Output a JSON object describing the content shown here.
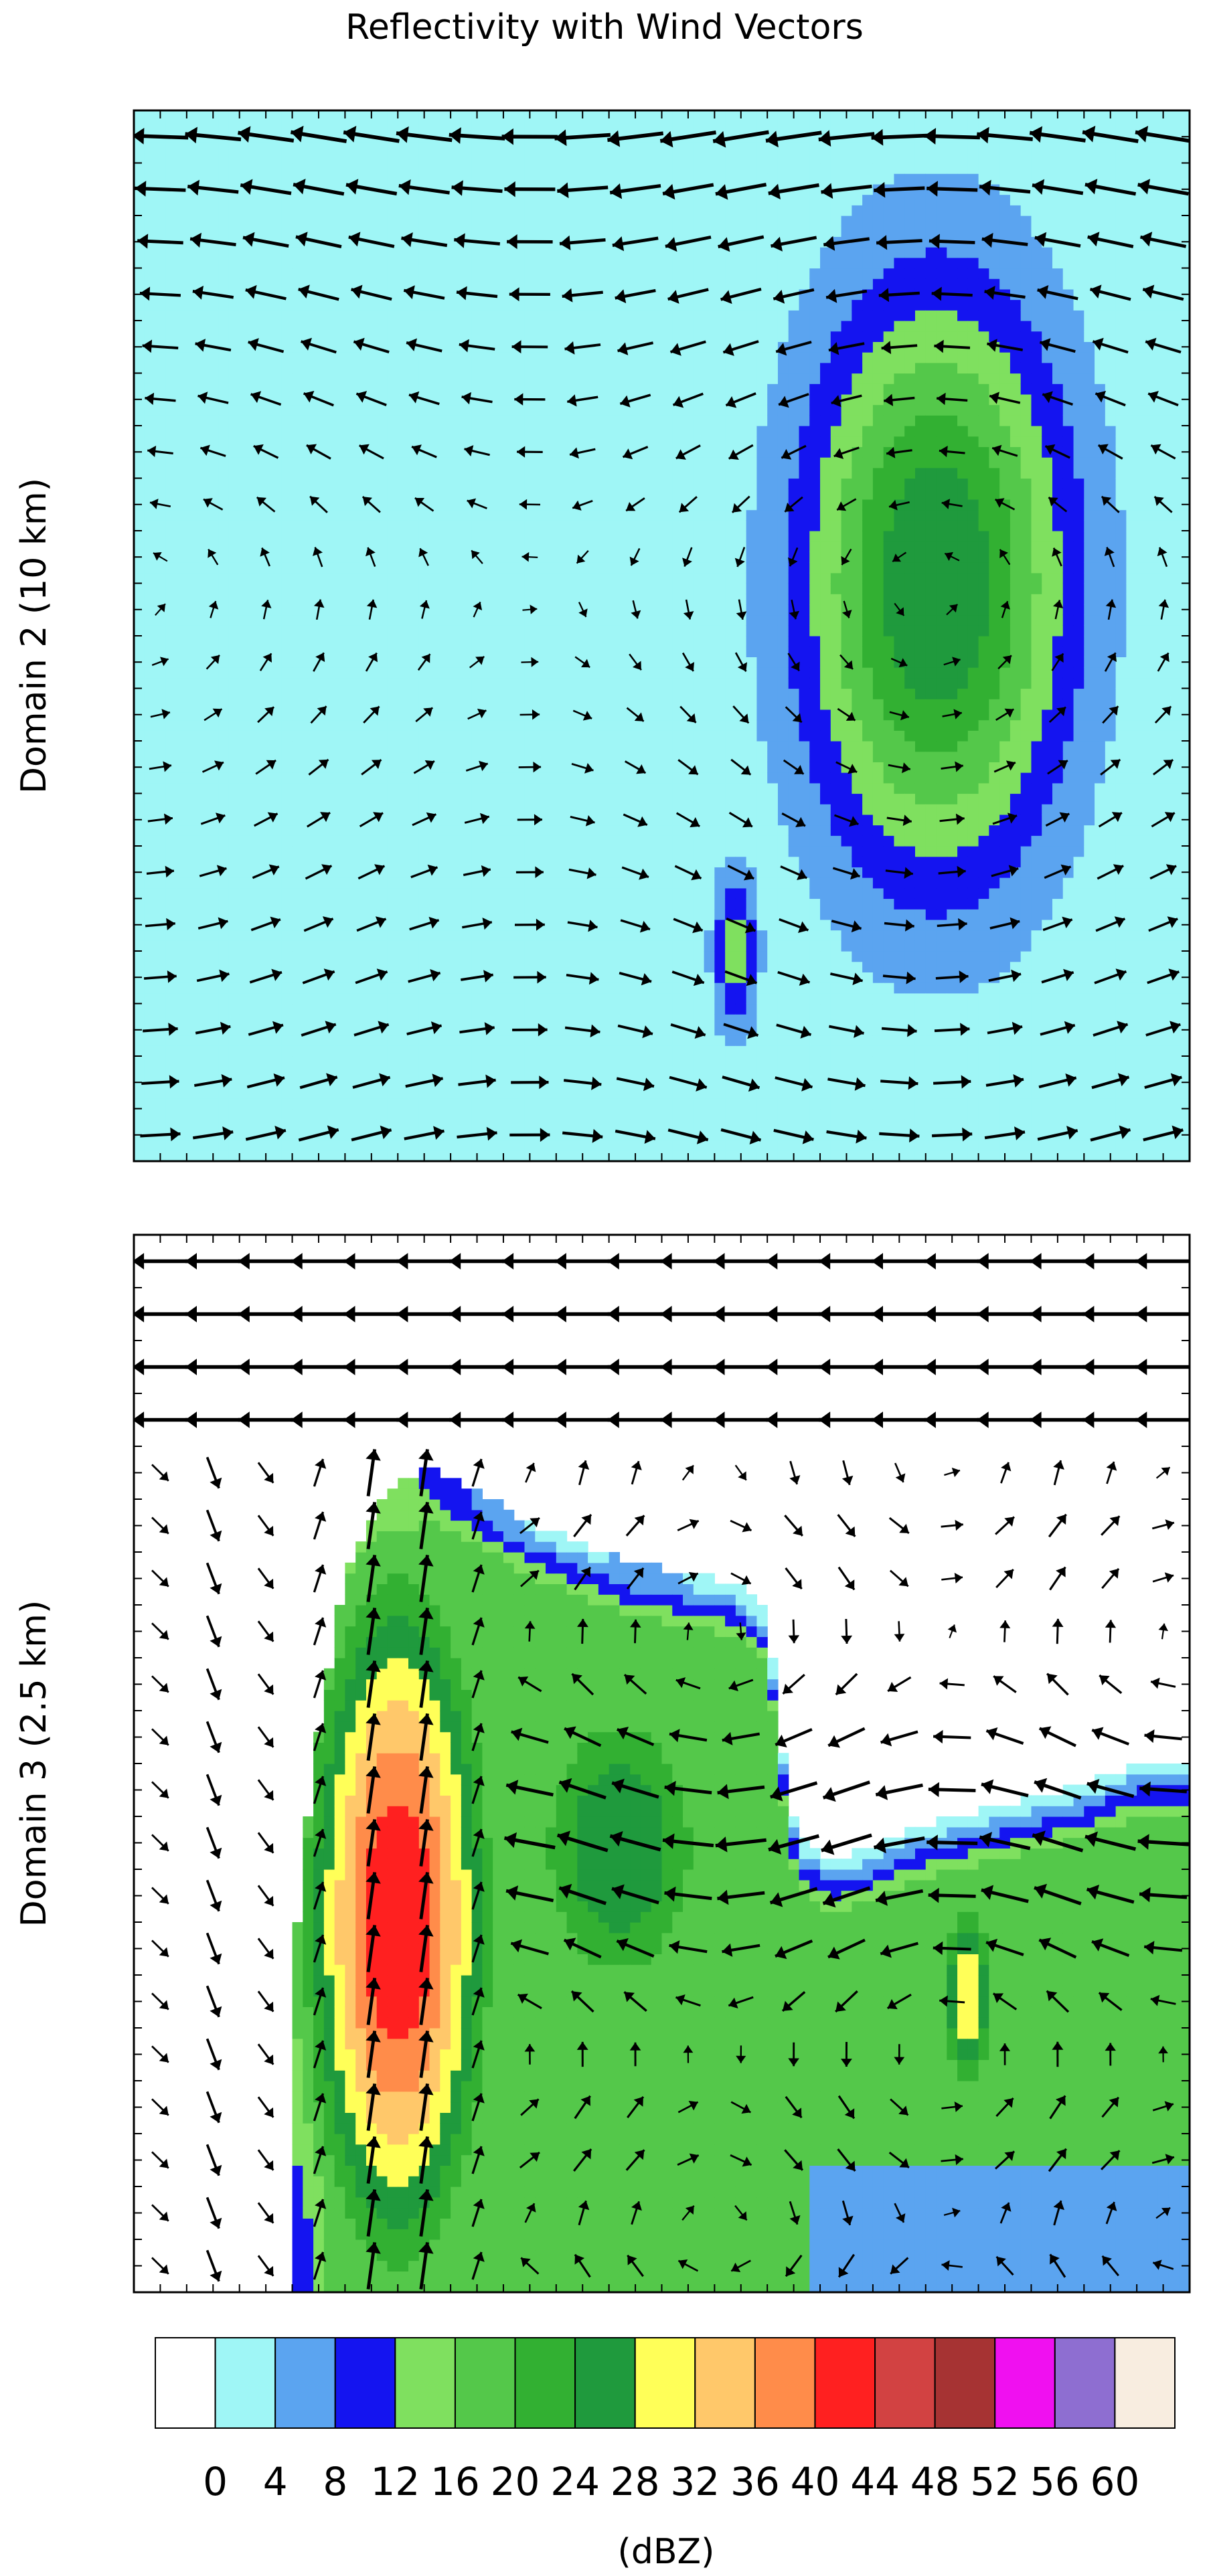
{
  "chart_data": {
    "type": "contour",
    "title": "Reflectivity with Wind Vectors",
    "panels": [
      {
        "name": "domain-2",
        "ylabel": "Domain 2 (10 km)",
        "xlim": [
          0,
          100
        ],
        "ylim": [
          0,
          100
        ],
        "cells": [
          {
            "x": 76,
            "y": 55,
            "sx": 9,
            "sy": 20,
            "peak": 28
          },
          {
            "x": 57,
            "y": 20,
            "sx": 1.6,
            "sy": 6,
            "peak": 14
          }
        ]
      },
      {
        "name": "domain-3",
        "ylabel": "Domain 3 (2.5 km)",
        "xlim": [
          0,
          100
        ],
        "ylim": [
          0,
          100
        ],
        "storm_top": [
          [
            15,
            0
          ],
          [
            15,
            30
          ],
          [
            17,
            50
          ],
          [
            20,
            68
          ],
          [
            24,
            76
          ],
          [
            28,
            78
          ],
          [
            32,
            76
          ],
          [
            37,
            73
          ],
          [
            42,
            71
          ],
          [
            47,
            69
          ],
          [
            52,
            68
          ],
          [
            57,
            67
          ],
          [
            60,
            64
          ],
          [
            61,
            55
          ],
          [
            62,
            47
          ],
          [
            63,
            43
          ],
          [
            66,
            41
          ],
          [
            70,
            42
          ],
          [
            74,
            44
          ],
          [
            78,
            45
          ],
          [
            82,
            46
          ],
          [
            86,
            47
          ],
          [
            90,
            48
          ],
          [
            95,
            50
          ],
          [
            100,
            50
          ]
        ],
        "storm_right_end": 100,
        "cores": [
          {
            "x": 25,
            "y": 35,
            "sx": 7,
            "sy": 26,
            "peak": 44
          },
          {
            "x": 46,
            "y": 42,
            "sx": 8,
            "sy": 14,
            "peak": 28
          },
          {
            "x": 79,
            "y": 28,
            "sx": 2.2,
            "sy": 8,
            "peak": 32
          }
        ]
      }
    ],
    "colorbar": {
      "label": "(dBZ)",
      "ticks": [
        "0",
        "4",
        "8",
        "12",
        "16",
        "20",
        "24",
        "28",
        "32",
        "36",
        "40",
        "44",
        "48",
        "52",
        "56",
        "60"
      ],
      "levels": [
        0,
        4,
        8,
        12,
        16,
        20,
        24,
        28,
        32,
        36,
        40,
        44,
        48,
        52,
        56,
        60
      ],
      "colors": [
        "#ffffff",
        "#9ff6f6",
        "#5ba4f0",
        "#1414f0",
        "#7fe05f",
        "#54c84a",
        "#32b032",
        "#1f9a3d",
        "#ffff58",
        "#ffc86a",
        "#ff8c4a",
        "#ff2020",
        "#d24242",
        "#a63333",
        "#f010f0",
        "#8e6ed1",
        "#f8ede0"
      ]
    }
  }
}
